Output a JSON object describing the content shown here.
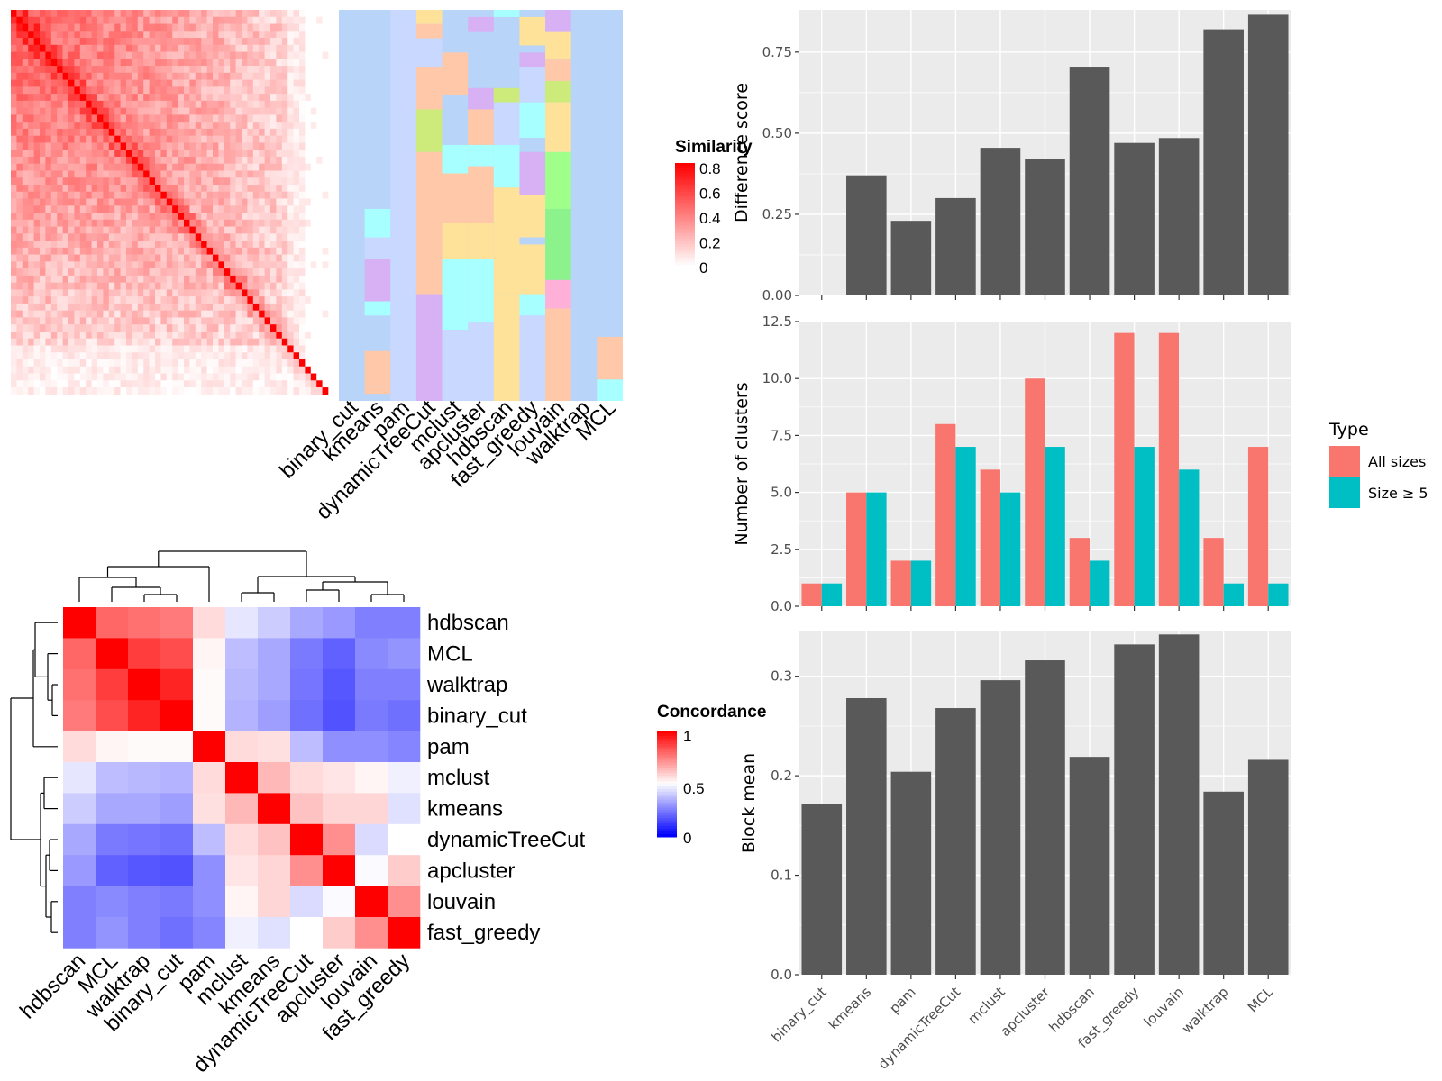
{
  "methods": [
    "binary_cut",
    "kmeans",
    "pam",
    "dynamicTreeCut",
    "mclust",
    "apcluster",
    "hdbscan",
    "fast_greedy",
    "louvain",
    "walktrap",
    "MCL"
  ],
  "similarity_legend": {
    "title": "Similarity",
    "ticks": [
      "0.8",
      "0.6",
      "0.4",
      "0.2",
      "0"
    ]
  },
  "concordance_legend": {
    "title": "Concordance",
    "ticks": [
      "1",
      "0.5",
      "0"
    ]
  },
  "type_legend": {
    "title": "Type",
    "items": [
      "All sizes",
      "Size ≥ 5"
    ]
  },
  "colors": {
    "all_sizes": "#F8766D",
    "size_ge5": "#00BFC4",
    "bar": "#595959",
    "panel_bg": "#EBEBEB",
    "hm_hi": "#FF0000",
    "conc_low": "#0000FF"
  },
  "chart_data": [
    {
      "type": "bar",
      "categories": [
        "binary_cut",
        "kmeans",
        "pam",
        "dynamicTreeCut",
        "mclust",
        "apcluster",
        "hdbscan",
        "fast_greedy",
        "louvain",
        "walktrap",
        "MCL"
      ],
      "values": [
        0,
        0.37,
        0.23,
        0.3,
        0.455,
        0.42,
        0.705,
        0.47,
        0.485,
        0.82,
        0.865
      ],
      "ylabel": "Difference score",
      "ylim": [
        0,
        0.88
      ],
      "yticks": [
        "0.00",
        "0.25",
        "0.50",
        "0.75"
      ]
    },
    {
      "type": "bar",
      "categories": [
        "binary_cut",
        "kmeans",
        "pam",
        "dynamicTreeCut",
        "mclust",
        "apcluster",
        "hdbscan",
        "fast_greedy",
        "louvain",
        "walktrap",
        "MCL"
      ],
      "series": [
        {
          "name": "All sizes",
          "values": [
            1,
            5,
            2,
            8,
            6,
            10,
            3,
            12,
            12,
            3,
            7
          ]
        },
        {
          "name": "Size ≥ 5",
          "values": [
            1,
            5,
            2,
            7,
            5,
            7,
            2,
            7,
            6,
            1,
            1
          ]
        }
      ],
      "ylabel": "Number of clusters",
      "ylim": [
        0,
        12.5
      ],
      "yticks": [
        "0.0",
        "2.5",
        "5.0",
        "7.5",
        "10.0",
        "12.5"
      ],
      "legend": "right"
    },
    {
      "type": "bar",
      "categories": [
        "binary_cut",
        "kmeans",
        "pam",
        "dynamicTreeCut",
        "mclust",
        "apcluster",
        "hdbscan",
        "fast_greedy",
        "louvain",
        "walktrap",
        "MCL"
      ],
      "values": [
        0.172,
        0.278,
        0.204,
        0.268,
        0.296,
        0.316,
        0.219,
        0.332,
        0.342,
        0.184,
        0.216
      ],
      "ylabel": "Block mean",
      "ylim": [
        0,
        0.345
      ],
      "yticks": [
        "0.0",
        "0.1",
        "0.2",
        "0.3"
      ]
    },
    {
      "type": "heatmap",
      "title": "Concordance",
      "row_labels": [
        "hdbscan",
        "MCL",
        "walktrap",
        "binary_cut",
        "pam",
        "mclust",
        "kmeans",
        "dynamicTreeCut",
        "apcluster",
        "louvain",
        "fast_greedy"
      ],
      "col_labels": [
        "hdbscan",
        "MCL",
        "walktrap",
        "binary_cut",
        "pam",
        "mclust",
        "kmeans",
        "dynamicTreeCut",
        "apcluster",
        "louvain",
        "fast_greedy"
      ],
      "values": [
        [
          1.0,
          0.8,
          0.78,
          0.76,
          0.57,
          0.45,
          0.4,
          0.33,
          0.3,
          0.25,
          0.25
        ],
        [
          0.8,
          1.0,
          0.88,
          0.85,
          0.52,
          0.37,
          0.33,
          0.24,
          0.19,
          0.27,
          0.29
        ],
        [
          0.78,
          0.88,
          1.0,
          0.93,
          0.51,
          0.36,
          0.33,
          0.23,
          0.17,
          0.25,
          0.25
        ],
        [
          0.76,
          0.85,
          0.93,
          1.0,
          0.51,
          0.35,
          0.31,
          0.22,
          0.16,
          0.24,
          0.22
        ],
        [
          0.57,
          0.52,
          0.51,
          0.51,
          1.0,
          0.57,
          0.56,
          0.37,
          0.28,
          0.28,
          0.26
        ],
        [
          0.45,
          0.37,
          0.36,
          0.35,
          0.57,
          1.0,
          0.64,
          0.57,
          0.55,
          0.52,
          0.47
        ],
        [
          0.4,
          0.33,
          0.33,
          0.31,
          0.56,
          0.64,
          1.0,
          0.62,
          0.58,
          0.58,
          0.44
        ],
        [
          0.33,
          0.24,
          0.23,
          0.22,
          0.37,
          0.57,
          0.62,
          1.0,
          0.72,
          0.43,
          0.5
        ],
        [
          0.3,
          0.19,
          0.17,
          0.16,
          0.28,
          0.55,
          0.58,
          0.72,
          1.0,
          0.49,
          0.6
        ],
        [
          0.25,
          0.27,
          0.25,
          0.24,
          0.28,
          0.52,
          0.58,
          0.43,
          0.49,
          1.0,
          0.72
        ],
        [
          0.25,
          0.29,
          0.25,
          0.22,
          0.26,
          0.47,
          0.44,
          0.5,
          0.6,
          0.72,
          1.0
        ]
      ]
    }
  ]
}
